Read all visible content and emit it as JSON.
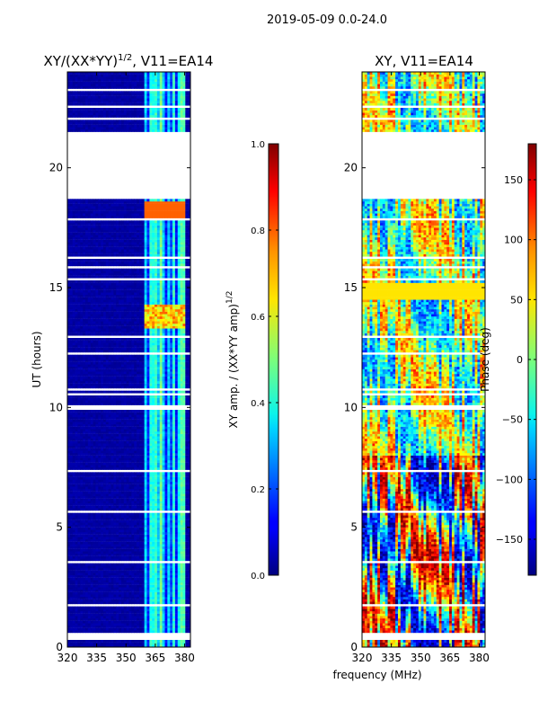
{
  "figure_title": "2019-05-09 0.0-24.0",
  "chart_data": [
    {
      "type": "heatmap",
      "title": "XY/(XX*YY)",
      "title_exponent": "1/2",
      "title_suffix": ", V11=EA14",
      "xlabel": "",
      "ylabel": "UT (hours)",
      "xlim": [
        320,
        383
      ],
      "ylim": [
        0,
        24
      ],
      "xticks": [
        320,
        335,
        350,
        365,
        380
      ],
      "yticks": [
        0,
        5,
        10,
        15,
        20
      ],
      "colorbar": {
        "label": "XY amp. / (XX*YY amp)",
        "label_exponent": "1/2",
        "range": [
          0.0,
          1.0
        ],
        "ticks": [
          "0.0",
          "0.2",
          "0.4",
          "0.6",
          "0.8",
          "1.0"
        ],
        "tick_values": [
          0.0,
          0.2,
          0.4,
          0.6,
          0.8,
          1.0
        ]
      },
      "description": "Mostly near-zero amplitude (dark blue) below ~360 MHz; ~0.3-0.5 (cyan) in 360-380 MHz channels; no data 18.7-21.5 UT",
      "gap_hours": [
        [
          18.7,
          21.5
        ]
      ],
      "active_band_mhz": [
        360,
        380
      ]
    },
    {
      "type": "heatmap",
      "title": "XY, V11=EA14",
      "xlabel": "frequency (MHz)",
      "ylabel": "",
      "xlim": [
        320,
        383
      ],
      "ylim": [
        0,
        24
      ],
      "xticks": [
        320,
        335,
        350,
        365,
        380
      ],
      "yticks": [
        0,
        5,
        10,
        15,
        20
      ],
      "colorbar": {
        "label": "Phase (deg)",
        "range": [
          -180,
          180
        ],
        "ticks": [
          "150",
          "100",
          "50",
          "0",
          "−50",
          "−100",
          "−150"
        ],
        "tick_values": [
          150,
          100,
          50,
          0,
          -50,
          -100,
          -150
        ]
      },
      "description": "XY phase, noisy across band; no data 18.7-21.5 UT",
      "gap_hours": [
        [
          18.7,
          21.5
        ]
      ]
    }
  ]
}
